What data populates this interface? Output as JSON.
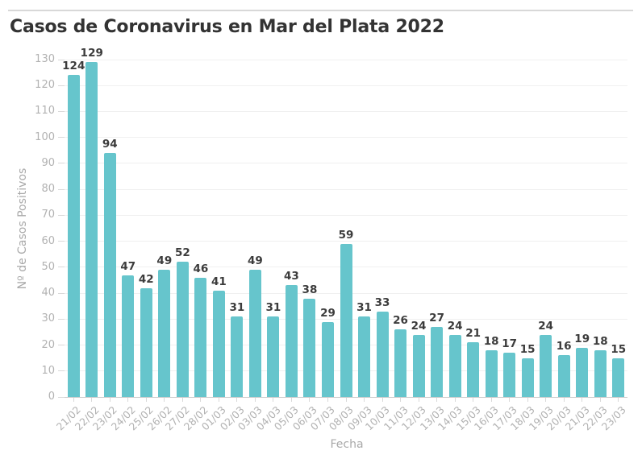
{
  "header": {
    "title": "Casos de Coronavirus en Mar del Plata 2022"
  },
  "chart_data": {
    "type": "bar",
    "title": "Casos de Coronavirus en Mar del Plata 2022",
    "xlabel": "Fecha",
    "ylabel": "Nº de Casos Positivos",
    "categories": [
      "21/02",
      "22/02",
      "23/02",
      "24/02",
      "25/02",
      "26/02",
      "27/02",
      "28/02",
      "01/03",
      "02/03",
      "03/03",
      "04/03",
      "05/03",
      "06/03",
      "07/03",
      "08/03",
      "09/03",
      "10/03",
      "11/03",
      "12/03",
      "13/03",
      "14/03",
      "15/03",
      "16/03",
      "17/03",
      "18/03",
      "19/03",
      "20/03",
      "21/03",
      "22/03",
      "23/03"
    ],
    "values": [
      124,
      129,
      94,
      47,
      42,
      49,
      52,
      46,
      41,
      31,
      49,
      31,
      43,
      38,
      29,
      59,
      31,
      33,
      26,
      24,
      27,
      24,
      21,
      18,
      17,
      15,
      24,
      16,
      19,
      18,
      15
    ],
    "ylim": [
      0,
      130
    ],
    "ytick_step": 10,
    "grid": true,
    "legend": "none",
    "bar_color": "#66c5cc",
    "value_label_color": "#3c3c3c",
    "axis_text_color": "#b2b2b2",
    "gridline_color": "#f0f0f0"
  }
}
